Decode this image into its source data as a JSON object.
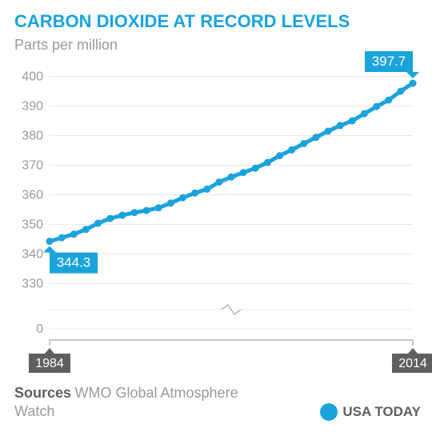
{
  "header": {
    "title": "CARBON DIOXIDE AT RECORD LEVELS",
    "title_color": "#1ba3dd",
    "title_fontsize": 22,
    "title_weight": 800,
    "subtitle": "Parts per million",
    "subtitle_color": "#9a9a9a",
    "subtitle_fontsize": 18
  },
  "chart": {
    "type": "line",
    "background_color": "#ffffff",
    "line_color": "#1ba3dd",
    "line_width": 5,
    "marker_size": 6,
    "marker_color": "#1ba3dd",
    "grid_color": "#e8e8e8",
    "axis_color": "#b9b9b9",
    "tick_label_color": "#9a9a9a",
    "tick_fontsize": 16,
    "x": {
      "min": 1984,
      "max": 2014,
      "labels": [
        1984,
        2014
      ],
      "label_boxes": true,
      "label_box_fill": "#5f5f5f",
      "label_box_text": "#ffffff",
      "label_box_fontsize": 16
    },
    "y": {
      "ticks": [
        0,
        330,
        340,
        350,
        360,
        370,
        380,
        390,
        400
      ],
      "upper_min": 325,
      "upper_max": 405,
      "broken_axis": true,
      "zero_gap": 40
    },
    "series": [
      {
        "year": 1984,
        "value": 344.3
      },
      {
        "year": 1985,
        "value": 345.5
      },
      {
        "year": 1986,
        "value": 346.7
      },
      {
        "year": 1987,
        "value": 348.3
      },
      {
        "year": 1988,
        "value": 350.4
      },
      {
        "year": 1989,
        "value": 352.0
      },
      {
        "year": 1990,
        "value": 353.1
      },
      {
        "year": 1991,
        "value": 354.0
      },
      {
        "year": 1992,
        "value": 354.7
      },
      {
        "year": 1993,
        "value": 355.6
      },
      {
        "year": 1994,
        "value": 357.2
      },
      {
        "year": 1995,
        "value": 359.0
      },
      {
        "year": 1996,
        "value": 360.6
      },
      {
        "year": 1997,
        "value": 361.9
      },
      {
        "year": 1998,
        "value": 364.3
      },
      {
        "year": 1999,
        "value": 366.0
      },
      {
        "year": 2000,
        "value": 367.5
      },
      {
        "year": 2001,
        "value": 369.0
      },
      {
        "year": 2002,
        "value": 370.9
      },
      {
        "year": 2003,
        "value": 373.2
      },
      {
        "year": 2004,
        "value": 375.2
      },
      {
        "year": 2005,
        "value": 377.3
      },
      {
        "year": 2006,
        "value": 379.4
      },
      {
        "year": 2007,
        "value": 381.5
      },
      {
        "year": 2008,
        "value": 383.4
      },
      {
        "year": 2009,
        "value": 385.0
      },
      {
        "year": 2010,
        "value": 387.4
      },
      {
        "year": 2011,
        "value": 389.8
      },
      {
        "year": 2012,
        "value": 392.0
      },
      {
        "year": 2013,
        "value": 395.0
      },
      {
        "year": 2014,
        "value": 397.7
      }
    ],
    "callouts": [
      {
        "year": 1984,
        "value": 344.3,
        "label": "344.3",
        "side": "below"
      },
      {
        "year": 2014,
        "value": 397.7,
        "label": "397.7",
        "side": "above"
      }
    ],
    "callout_fill": "#1ba3dd",
    "callout_text": "#ffffff",
    "callout_fontsize": 17
  },
  "footer": {
    "sources_label": "Sources",
    "sources_label_color": "#5f5f5f",
    "sources_label_weight": 700,
    "sources_text": "WMO Global Atmosphere Watch",
    "sources_text_color": "#9a9a9a",
    "sources_fontsize": 18,
    "brand": "USA TODAY",
    "brand_color": "#5f5f5f",
    "brand_fontsize": 17,
    "dot_color": "#1ba3dd"
  }
}
